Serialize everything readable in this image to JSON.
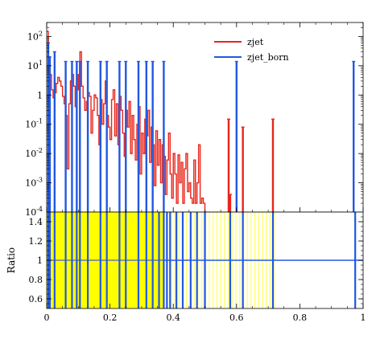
{
  "chart_data": [
    {
      "panel": "main",
      "type": "line",
      "title": "",
      "xlabel": "",
      "ylabel": "",
      "xlim": [
        0,
        1
      ],
      "ylim": [
        0.0001,
        300
      ],
      "yscale": "log",
      "x_ticks": [
        0,
        0.2,
        0.4,
        0.6,
        0.8,
        1
      ],
      "y_ticks": [
        {
          "value": 0.0001,
          "label": "10^-4"
        },
        {
          "value": 0.001,
          "label": "10^-3"
        },
        {
          "value": 0.01,
          "label": "10^-2"
        },
        {
          "value": 0.1,
          "label": "10^-1"
        },
        {
          "value": 1,
          "label": "1"
        },
        {
          "value": 10,
          "label": "10^1"
        },
        {
          "value": 100,
          "label": "10^2"
        }
      ],
      "legend": {
        "position": "top-right"
      },
      "series": [
        {
          "name": "zjet",
          "color": "#e8251a",
          "style": "step",
          "x": [
            0.0,
            0.005,
            0.01,
            0.015,
            0.02,
            0.025,
            0.03,
            0.035,
            0.04,
            0.045,
            0.05,
            0.055,
            0.06,
            0.065,
            0.07,
            0.075,
            0.08,
            0.085,
            0.09,
            0.095,
            0.1,
            0.105,
            0.11,
            0.115,
            0.12,
            0.125,
            0.13,
            0.135,
            0.14,
            0.145,
            0.15,
            0.155,
            0.16,
            0.165,
            0.17,
            0.175,
            0.18,
            0.185,
            0.19,
            0.195,
            0.2,
            0.205,
            0.21,
            0.215,
            0.22,
            0.225,
            0.23,
            0.235,
            0.24,
            0.245,
            0.25,
            0.255,
            0.26,
            0.265,
            0.27,
            0.275,
            0.28,
            0.285,
            0.29,
            0.295,
            0.3,
            0.305,
            0.31,
            0.315,
            0.32,
            0.325,
            0.33,
            0.335,
            0.34,
            0.345,
            0.35,
            0.355,
            0.36,
            0.365,
            0.37,
            0.375,
            0.38,
            0.385,
            0.39,
            0.395,
            0.4,
            0.405,
            0.41,
            0.415,
            0.42,
            0.425,
            0.43,
            0.435,
            0.44,
            0.445,
            0.45,
            0.455,
            0.46,
            0.465,
            0.47,
            0.475,
            0.48,
            0.485,
            0.49,
            0.495,
            0.5
          ],
          "y": [
            150,
            20,
            5,
            1.5,
            0.8,
            1.2,
            2.5,
            4,
            3,
            2,
            0.9,
            0.5,
            0.2,
            0.003,
            0.5,
            3,
            5,
            2,
            0.4,
            1.5,
            5,
            30,
            2,
            0.8,
            0.3,
            0.6,
            1.2,
            0.9,
            0.05,
            0.3,
            1,
            0.8,
            0.2,
            0.02,
            0.7,
            0.1,
            0.5,
            3,
            0.2,
            0.08,
            0.03,
            0.7,
            1.5,
            0.04,
            0.5,
            0.02,
            0.9,
            0.3,
            0.05,
            0.008,
            0.3,
            0.08,
            0.6,
            0.01,
            0.2,
            0.03,
            0.006,
            0.1,
            0.4,
            0.002,
            0.05,
            0.01,
            0.15,
            0.04,
            0.3,
            0.005,
            0.08,
            0.02,
            0.0008,
            0.06,
            0.004,
            0.03,
            0.001,
            0.02,
            0.008,
            0.0004,
            0.006,
            0.05,
            0.002,
            0.0003,
            0.01,
            0.002,
            0.0002,
            0.009,
            0.001,
            0.005,
            0.0002,
            0.003,
            0.01,
            0.0005,
            0.001,
            0.0003,
            0.0002,
            0.006,
            0.0002,
            0.001,
            0.02,
            0.0002,
            0.0003,
            0.0002,
            0.0001
          ]
        },
        {
          "name": "zjet_born",
          "color": "#2258e0",
          "style": "spikes",
          "x": [
            0.005,
            0.01,
            0.025,
            0.06,
            0.08,
            0.095,
            0.105,
            0.13,
            0.17,
            0.19,
            0.23,
            0.25,
            0.29,
            0.315,
            0.335,
            0.37,
            0.6,
            0.97
          ],
          "y": [
            60,
            20,
            30,
            14,
            14,
            14,
            14,
            14,
            14,
            14,
            14,
            14,
            14,
            14,
            14,
            14,
            14,
            14
          ]
        },
        {
          "name": "",
          "color": "#e8251a",
          "style": "spikes",
          "x": [
            0.575,
            0.58,
            0.62,
            0.715
          ],
          "y": [
            0.15,
            0.0004,
            0.08,
            0.15
          ]
        }
      ]
    },
    {
      "panel": "ratio",
      "type": "line",
      "title": "",
      "xlabel": "",
      "ylabel": "Ratio",
      "xlim": [
        0,
        1
      ],
      "ylim": [
        0.5,
        1.5
      ],
      "x_ticks": [
        {
          "value": 0,
          "label": "0"
        },
        {
          "value": 0.2,
          "label": "0.2"
        },
        {
          "value": 0.4,
          "label": "0.4"
        },
        {
          "value": 0.6,
          "label": "0.6"
        },
        {
          "value": 0.8,
          "label": "0.8"
        },
        {
          "value": 1,
          "label": "1"
        }
      ],
      "y_ticks": [
        {
          "value": 0.6,
          "label": "0.6"
        },
        {
          "value": 0.8,
          "label": "0.8"
        },
        {
          "value": 1,
          "label": "1"
        },
        {
          "value": 1.2,
          "label": "1.2"
        },
        {
          "value": 1.4,
          "label": "1.4"
        }
      ],
      "band_color": "#ffff00",
      "band_x": [
        0,
        0.37
      ],
      "band_faint_x": [
        0.37,
        0.72
      ],
      "reference_line": 1,
      "spike_color": "#2258e0",
      "spike_x": [
        0.005,
        0.01,
        0.025,
        0.06,
        0.08,
        0.095,
        0.105,
        0.13,
        0.17,
        0.19,
        0.23,
        0.25,
        0.29,
        0.315,
        0.335,
        0.355,
        0.37,
        0.38,
        0.39,
        0.41,
        0.43,
        0.455,
        0.475,
        0.5,
        0.58,
        0.62,
        0.715,
        0.975
      ]
    }
  ]
}
